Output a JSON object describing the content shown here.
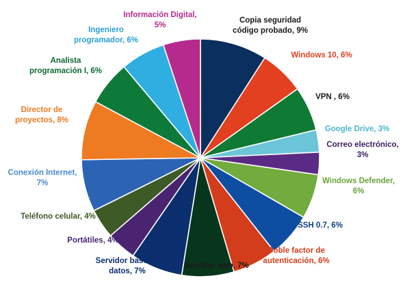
{
  "chart_data": {
    "type": "pie",
    "title": "",
    "start_angle_deg": 0,
    "direction": "clockwise",
    "slices": [
      {
        "label_lines": [
          "Copia seguridad",
          "código probado, 9%"
        ],
        "value": 9,
        "color": "#0b2f5e",
        "label_color": "#1a1a1a"
      },
      {
        "label_lines": [
          "Windows 10, 6%"
        ],
        "value": 6,
        "color": "#e2401f",
        "label_color": "#e2401f"
      },
      {
        "label_lines": [
          "VPN , 6%"
        ],
        "value": 6,
        "color": "#0f7a33",
        "label_color": "#1a1a1a"
      },
      {
        "label_lines": [
          "Google Drive, 3%"
        ],
        "value": 3,
        "color": "#6cc5d8",
        "label_color": "#4db6cf"
      },
      {
        "label_lines": [
          "Correo electrónico,",
          "3%"
        ],
        "value": 3,
        "color": "#5a2b84",
        "label_color": "#3b1f63"
      },
      {
        "label_lines": [
          "Windows Defender,",
          "6%"
        ],
        "value": 6,
        "color": "#72ab3e",
        "label_color": "#6aa33a"
      },
      {
        "label_lines": [
          "SSH  0.7, 6%"
        ],
        "value": 6,
        "color": "#0d4ea3",
        "label_color": "#0d3f87"
      },
      {
        "label_lines": [
          "Doble factor de",
          "autenticación, 6%"
        ],
        "value": 6,
        "color": "#d43d1b",
        "label_color": "#d43d1b"
      },
      {
        "label_lines": [
          "Servidor web, 7%"
        ],
        "value": 7,
        "color": "#08361d",
        "label_color": "#1a1a1a"
      },
      {
        "label_lines": [
          "Servidor base de",
          "datos, 7%"
        ],
        "value": 7,
        "color": "#0b2f6e",
        "label_color": "#0b2f6e"
      },
      {
        "label_lines": [
          "Portátiles, 4%"
        ],
        "value": 4,
        "color": "#4a2470",
        "label_color": "#4a2470"
      },
      {
        "label_lines": [
          "Teléfono celular, 4%"
        ],
        "value": 4,
        "color": "#3e5a26",
        "label_color": "#3e5a26"
      },
      {
        "label_lines": [
          "Conexión Internet,",
          "7%"
        ],
        "value": 7,
        "color": "#2c64b4",
        "label_color": "#4a8bd0"
      },
      {
        "label_lines": [
          "Director de",
          "proyectos, 8%"
        ],
        "value": 8,
        "color": "#ee7a22",
        "label_color": "#ee7a22"
      },
      {
        "label_lines": [
          "Analista",
          "programación I, 6%"
        ],
        "value": 6,
        "color": "#0e7a3a",
        "label_color": "#0e6a33"
      },
      {
        "label_lines": [
          "Ingeniero",
          "programador, 6%"
        ],
        "value": 6,
        "color": "#2faee2",
        "label_color": "#2aa0d4"
      },
      {
        "label_lines": [
          "Información Digital,",
          "5%"
        ],
        "value": 5,
        "color": "#b62a8e",
        "label_color": "#b62a8e"
      }
    ]
  }
}
